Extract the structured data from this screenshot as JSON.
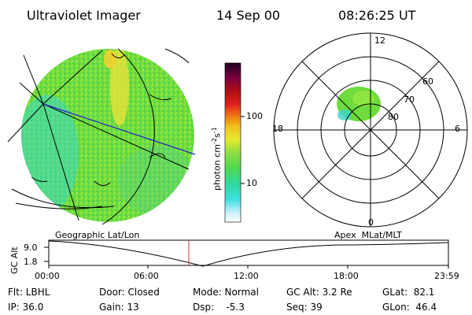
{
  "header": {
    "instrument": "Ultraviolet Imager",
    "date": "14 Sep 00",
    "time": "08:26:25 UT"
  },
  "colorbar": {
    "label": "photon cm",
    "label_sup1": "-2",
    "label_mid": "s",
    "label_sup2": "-1",
    "ticks": [
      "100",
      "10"
    ],
    "scale": "log"
  },
  "polar_plot": {
    "mlt_labels": {
      "top": "12",
      "left": "18",
      "right": "6",
      "bottom": "0"
    },
    "lat_labels": [
      "60",
      "70",
      "80"
    ]
  },
  "timeline": {
    "left_label": "Geographic Lat/Lon",
    "right_label": "Apex  MLat/MLT",
    "axis_title": "GC Alt",
    "y_ticks": [
      "9.0",
      "1.8"
    ],
    "x_ticks": [
      "00:00",
      "06:00",
      "12:00",
      "18:00",
      "23:59"
    ],
    "current_time_marker_color": "#cc3333"
  },
  "status": {
    "flt": "Flt: LBHL",
    "ip": "IP: 36.0",
    "door": "Door: Closed",
    "gain": "Gain: 13",
    "mode": "Mode: Normal",
    "dsp": "Dsp:    -5.3",
    "gc_alt": "GC Alt: 3.2 Re",
    "seq": "Seq: 39",
    "glat": "GLat:  82.1",
    "glon": "GLon:  46.4"
  },
  "colors": {
    "image_green": "#6edc3c",
    "image_cyan": "#39d7c8",
    "image_yellow": "#e8e23a",
    "grid_black": "#000000",
    "track_blue": "#2222cc"
  }
}
